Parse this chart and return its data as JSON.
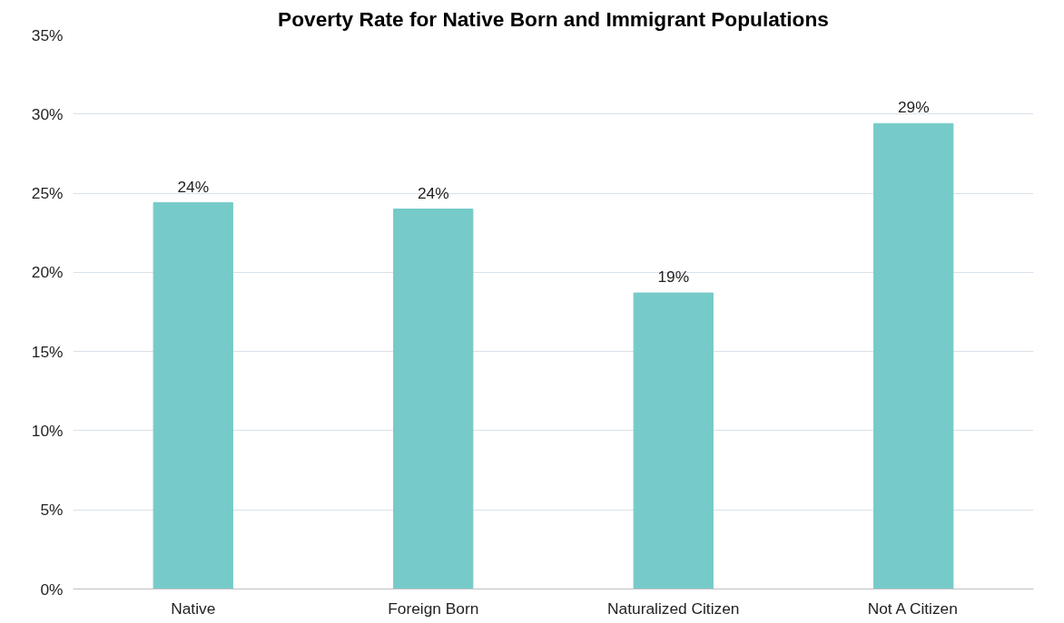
{
  "chart_data": {
    "type": "bar",
    "title": "Poverty Rate for Native Born and Immigrant Populations",
    "categories": [
      "Native",
      "Foreign Born",
      "Naturalized Citizen",
      "Not A Citizen"
    ],
    "values": [
      24.4,
      24.0,
      18.7,
      29.4
    ],
    "value_labels": [
      "24%",
      "24%",
      "19%",
      "29%"
    ],
    "color": "#76cbc9",
    "ylim": [
      0,
      35
    ],
    "yticks": [
      {
        "value": 0,
        "label": "0%"
      },
      {
        "value": 5,
        "label": "5%"
      },
      {
        "value": 10,
        "label": "10%"
      },
      {
        "value": 15,
        "label": "15%"
      },
      {
        "value": 20,
        "label": "20%"
      },
      {
        "value": 25,
        "label": "25%"
      },
      {
        "value": 30,
        "label": "30%"
      },
      {
        "value": 35,
        "label": "35%"
      }
    ],
    "grid": "y"
  }
}
